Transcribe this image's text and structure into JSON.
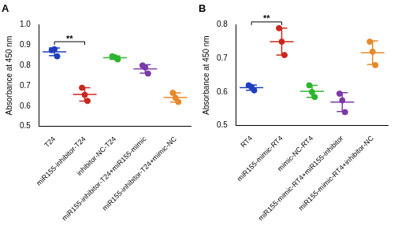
{
  "chart_data": [
    {
      "type": "scatter",
      "title": "A",
      "y_label": "Absorbance at 450 nm",
      "categories": [
        "T24",
        "miR155-inhibitor-T24",
        "inhibitor-NC-T24",
        "miR155-inhibitor-T24+miR155-mimic",
        "miR155-inhibitor-T24+mimic-NC"
      ],
      "values": [
        [
          0.875,
          0.88,
          0.845
        ],
        [
          0.69,
          0.655,
          0.625
        ],
        [
          0.845,
          0.84,
          0.83
        ],
        [
          0.8,
          0.79,
          0.76
        ],
        [
          0.665,
          0.64,
          0.62
        ]
      ],
      "mean": [
        0.867,
        0.657,
        0.838,
        0.783,
        0.642
      ],
      "sd": [
        0.019,
        0.033,
        0.008,
        0.021,
        0.023
      ],
      "colors": [
        "#1f3fbf",
        "#c8281e",
        "#2db52d",
        "#7a3aa8",
        "#e6892a"
      ],
      "ylim": [
        0.5,
        1
      ],
      "yticks": [
        0.5,
        0.6,
        0.7,
        0.8,
        0.9,
        {
          "value": 1,
          "label": "1.0"
        }
      ],
      "grid": false,
      "annotations": [
        {
          "text": "**",
          "between": [
            "T24",
            "miR155-inhibitor-T24"
          ]
        }
      ]
    },
    {
      "type": "scatter",
      "title": "B",
      "y_label": "Absorbance at 450 nm",
      "categories": [
        "RT4",
        "miR155-mimic-RT4",
        "mimic-NC-RT4",
        "miR155-mimic-RT4+miR155-inhibitor",
        "miR155-mimic-RT4+inhibitor-NC"
      ],
      "values": [
        [
          0.62,
          0.615,
          0.605
        ],
        [
          0.79,
          0.75,
          0.71
        ],
        [
          0.62,
          0.6,
          0.585
        ],
        [
          0.595,
          0.575,
          0.54
        ],
        [
          0.75,
          0.72,
          0.68
        ]
      ],
      "mean": [
        0.613,
        0.75,
        0.602,
        0.57,
        0.717
      ],
      "sd": [
        0.008,
        0.04,
        0.018,
        0.028,
        0.035
      ],
      "colors": [
        "#1f3fbf",
        "#c8281e",
        "#2db52d",
        "#7a3aa8",
        "#e6892a"
      ],
      "ylim": [
        0.5,
        0.8
      ],
      "yticks": [
        0.5,
        0.6,
        0.7,
        0.8
      ],
      "grid": false,
      "annotations": [
        {
          "text": "**",
          "between": [
            "RT4",
            "miR155-mimic-RT4"
          ]
        }
      ]
    }
  ]
}
